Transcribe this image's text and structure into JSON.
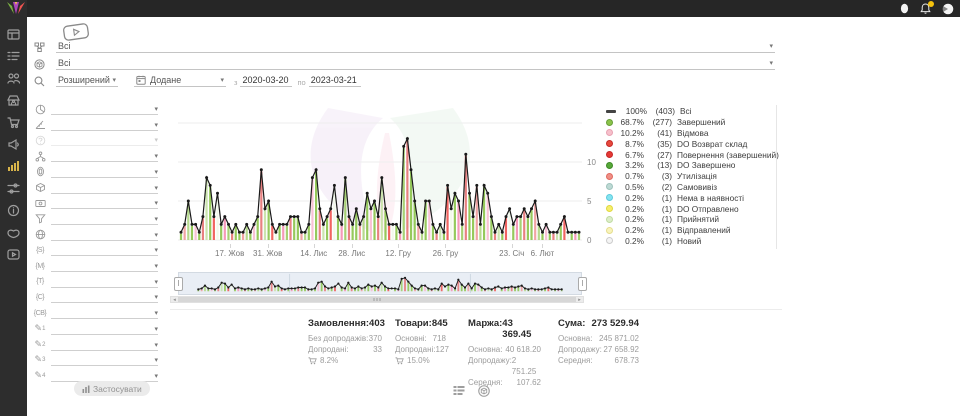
{
  "brand": {
    "accent_green": "#7cb342",
    "accent_purple": "#ab47bc",
    "accent_red": "#ef5350",
    "notification_badge_color": "#f4c20d",
    "active_nav_color": "#d8b44a"
  },
  "topbar": {
    "right_icons": [
      "user-icon",
      "bell-icon",
      "avatar-icon"
    ],
    "bell_badge": true
  },
  "sidebar": {
    "items": [
      {
        "icon": "dashboard"
      },
      {
        "icon": "orders"
      },
      {
        "icon": "customers"
      },
      {
        "icon": "store"
      },
      {
        "icon": "cart"
      },
      {
        "icon": "marketing"
      },
      {
        "icon": "analytics",
        "active": true
      },
      {
        "icon": "settings"
      },
      {
        "icon": "info"
      },
      {
        "icon": "support"
      },
      {
        "icon": "tutorials"
      }
    ]
  },
  "filters": {
    "source": {
      "value": "Всі"
    },
    "product": {
      "value": "Всі"
    },
    "mode": {
      "value": "Розширений"
    },
    "date_field": {
      "value": "Додане"
    },
    "from_label": "з",
    "date_from": "2020-03-20",
    "to_label": "по",
    "date_to": "2023-03-21",
    "apply_label": "Застосувати",
    "rows": [
      {
        "icon": "segment-icon"
      },
      {
        "icon": "level-icon"
      },
      {
        "icon": "help-icon",
        "disabled": true
      },
      {
        "icon": "hierarchy-icon"
      },
      {
        "icon": "fingerprint-icon"
      },
      {
        "icon": "package-icon"
      },
      {
        "icon": "payment-icon"
      },
      {
        "icon": "funnel-icon"
      },
      {
        "icon": "website-icon"
      },
      {
        "icon": "brace",
        "text": "{S}"
      },
      {
        "icon": "brace",
        "text": "{M}"
      },
      {
        "icon": "brace",
        "text": "{T}"
      },
      {
        "icon": "brace",
        "text": "{C}"
      },
      {
        "icon": "brace",
        "text": "{CB}"
      },
      {
        "icon": "pencil",
        "text": "1"
      },
      {
        "icon": "pencil",
        "text": "2"
      },
      {
        "icon": "pencil",
        "text": "3"
      },
      {
        "icon": "pencil",
        "text": "4"
      }
    ]
  },
  "chart_data": {
    "type": "line+stacked-bar",
    "y_ticks": [
      {
        "label": "0",
        "value": 0
      },
      {
        "label": "5",
        "value": 5
      },
      {
        "label": "10",
        "value": 10
      }
    ],
    "ylim": [
      0,
      15
    ],
    "x_ticks": [
      {
        "label": "17. Жов",
        "pos": 0.128
      },
      {
        "label": "31. Жов",
        "pos": 0.222
      },
      {
        "label": "14. Лис",
        "pos": 0.336
      },
      {
        "label": "28. Лис",
        "pos": 0.43
      },
      {
        "label": "12. Гру",
        "pos": 0.545
      },
      {
        "label": "26. Гру",
        "pos": 0.662
      },
      {
        "label": "23. Січ",
        "pos": 0.826
      },
      {
        "label": "6. Лют",
        "pos": 0.902
      }
    ],
    "totals": [
      1,
      2,
      5,
      2,
      2,
      1,
      3,
      8,
      7,
      3,
      6,
      2,
      3,
      2,
      1,
      2,
      1,
      1,
      2,
      1,
      2,
      3,
      9,
      4,
      5,
      2,
      1,
      2,
      2,
      2,
      3,
      3,
      3,
      1,
      1,
      2,
      8,
      9,
      4,
      2,
      3,
      4,
      7,
      3,
      2,
      8,
      3,
      2,
      4,
      2,
      3,
      6,
      4,
      5,
      3,
      8,
      4,
      2,
      2,
      2,
      1,
      12,
      13,
      9,
      5,
      2,
      1,
      5,
      5,
      2,
      1,
      2,
      1,
      7,
      4,
      6,
      5,
      2,
      11,
      6,
      3,
      7,
      2,
      7,
      6,
      3,
      1,
      2,
      1,
      3,
      4,
      2,
      3,
      3,
      4,
      3,
      4,
      5,
      2,
      1,
      2,
      1,
      1,
      1,
      2,
      3,
      1,
      1,
      1,
      1
    ],
    "bar_palette": [
      "#8bc34a",
      "#ef9a9a",
      "#aed581",
      "#8bc34a",
      "#f8bbd0",
      "#8bc34a",
      "#e57373",
      "#c5e1a5",
      "#8bc34a",
      "#ef5350",
      "#f1f8e9",
      "#8bc34a",
      "#f48fb1",
      "#9ccc65",
      "#e57373",
      "#8bc34a"
    ],
    "line_color": "#1a1a1a",
    "legend_position": "right",
    "legend": [
      {
        "swatch": "line",
        "color": "#444444",
        "pct": "100%",
        "count": "(403)",
        "label": "Всі"
      },
      {
        "swatch": "dot",
        "color": "#8bc34a",
        "border": "#689f38",
        "pct": "68.7%",
        "count": "(277)",
        "label": "Завершений"
      },
      {
        "swatch": "dot",
        "color": "#f6c0cb",
        "border": "#e8a2b2",
        "pct": "10.2%",
        "count": "(41)",
        "label": "Відмова"
      },
      {
        "swatch": "dot",
        "color": "#e6493c",
        "border": "#c62828",
        "pct": "8.7%",
        "count": "(35)",
        "label": "DO Возврат склад"
      },
      {
        "swatch": "dot",
        "color": "#e53935",
        "border": "#c62828",
        "pct": "6.7%",
        "count": "(27)",
        "label": "Повернення (завершений)"
      },
      {
        "swatch": "dot",
        "color": "#56a839",
        "border": "#3f8a27",
        "pct": "3.2%",
        "count": "(13)",
        "label": "DO Завершено"
      },
      {
        "swatch": "dot",
        "color": "#ef8f86",
        "border": "#e06a60",
        "pct": "0.7%",
        "count": "(3)",
        "label": "Утилізація"
      },
      {
        "swatch": "dot",
        "color": "#bcd9d4",
        "border": "#9fc3bc",
        "pct": "0.5%",
        "count": "(2)",
        "label": "Самовивіз"
      },
      {
        "swatch": "dot",
        "color": "#84e3f0",
        "border": "#5ecbdc",
        "pct": "0.2%",
        "count": "(1)",
        "label": "Нема в наявності"
      },
      {
        "swatch": "dot",
        "color": "#f6ee6d",
        "border": "#e0d83f",
        "pct": "0.2%",
        "count": "(1)",
        "label": "DO Отправлено"
      },
      {
        "swatch": "dot",
        "color": "#dcedc8",
        "border": "#c0dba2",
        "pct": "0.2%",
        "count": "(1)",
        "label": "Прийнятий"
      },
      {
        "swatch": "dot",
        "color": "#f8f3bb",
        "border": "#e5dd8e",
        "pct": "0.2%",
        "count": "(1)",
        "label": "Відправлений"
      },
      {
        "swatch": "dot",
        "color": "#f4f4f4",
        "border": "#cccccc",
        "pct": "0.2%",
        "count": "(1)",
        "label": "Новий"
      }
    ]
  },
  "stats": {
    "columns": [
      {
        "title": "Замовлення:",
        "value": "403",
        "rows": [
          {
            "label": "Без допродажів:",
            "value": "370"
          },
          {
            "label": "Допродані:",
            "value": "33"
          }
        ],
        "pct": "8.2%"
      },
      {
        "title": "Товари:",
        "value": "845",
        "rows": [
          {
            "label": "Основні:",
            "value": "718"
          },
          {
            "label": "Допродані:",
            "value": "127"
          }
        ],
        "pct": "15.0%"
      },
      {
        "title": "Маржа:",
        "value": "43 369.45",
        "rows": [
          {
            "label": "Основна:",
            "value": "40 618.20"
          },
          {
            "label": "Допродажу:",
            "value": "2 751.25"
          },
          {
            "label": "Середня:",
            "value": "107.62"
          }
        ]
      },
      {
        "title": "Сума:",
        "value": "273 529.94",
        "rows": [
          {
            "label": "Основна:",
            "value": "245 871.02"
          },
          {
            "label": "Допродажу:",
            "value": "27 658.92"
          },
          {
            "label": "Середня:",
            "value": "678.73"
          }
        ]
      }
    ],
    "bottom_toggles": [
      "orders-list-icon",
      "products-icon"
    ]
  }
}
